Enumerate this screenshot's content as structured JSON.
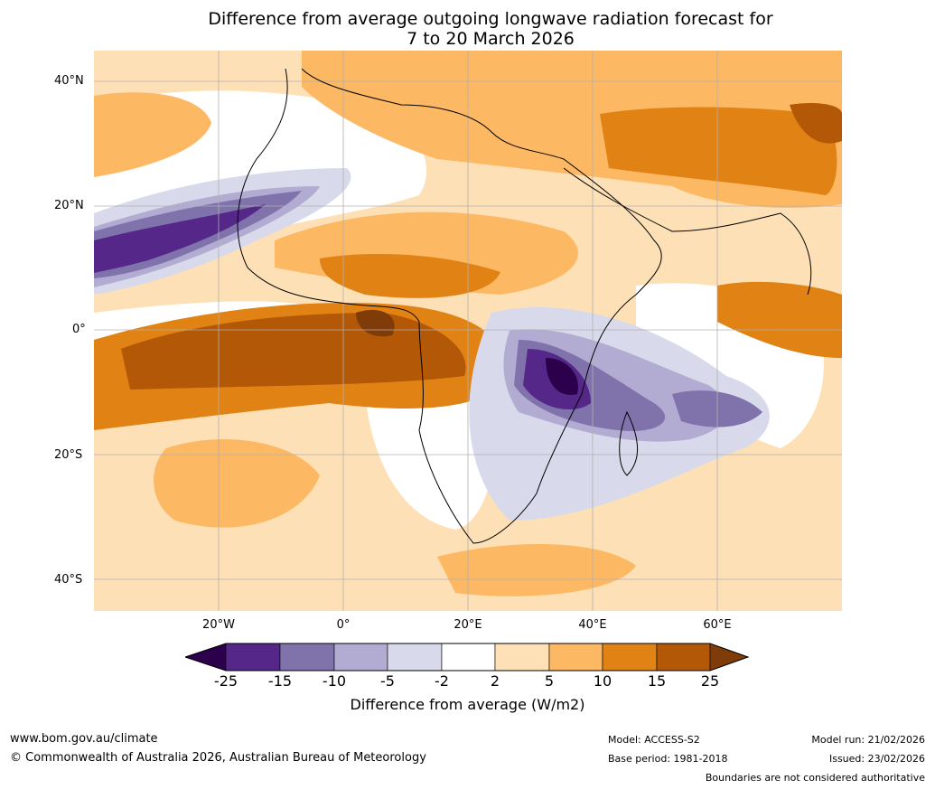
{
  "title_line1": "Difference from average outgoing longwave radiation forecast for",
  "title_line2": "7 to 20 March 2026",
  "lat_labels": [
    "40°N",
    "20°N",
    "0°",
    "20°S",
    "40°S"
  ],
  "lon_labels": [
    "20°W",
    "0°",
    "20°E",
    "40°E",
    "60°E"
  ],
  "colorbar": {
    "label": "Difference from average (W/m2)",
    "ticks": [
      "-25",
      "-15",
      "-10",
      "-5",
      "-2",
      "2",
      "5",
      "10",
      "15",
      "25"
    ],
    "colors": [
      "#2d004b",
      "#542788",
      "#8073ac",
      "#b2abd2",
      "#d8daeb",
      "#ffffff",
      "#fee0b6",
      "#fdb863",
      "#e08214",
      "#b35806",
      "#7f3b08"
    ]
  },
  "footer": {
    "website": "www.bom.gov.au/climate",
    "copyright": "© Commonwealth of Australia 2026, Australian Bureau of Meteorology",
    "model": "Model: ACCESS-S2",
    "base_period": "Base period: 1981-2018",
    "model_run": "Model run: 21/02/2026",
    "issued": "Issued: 23/02/2026",
    "disclaimer": "Boundaries are not considered authoritative"
  }
}
